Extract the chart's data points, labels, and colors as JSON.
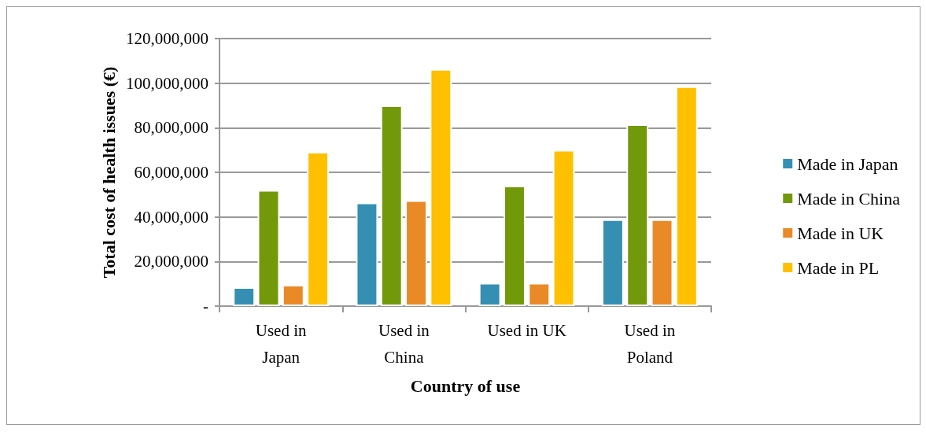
{
  "chart_data": {
    "type": "bar",
    "xlabel": "Country of use",
    "ylabel": "Total cost of health issues (€)",
    "categories": [
      "Used in\nJapan",
      "Used in\nChina",
      "Used in UK",
      "Used in\nPoland"
    ],
    "series": [
      {
        "name": "Made in Japan",
        "color": "#358fb3",
        "values": [
          8500000,
          46400000,
          10400000,
          38900000
        ]
      },
      {
        "name": "Made in China",
        "color": "#72990a",
        "values": [
          52100000,
          90000000,
          54000000,
          81500000
        ]
      },
      {
        "name": "Made in UK",
        "color": "#e98a27",
        "values": [
          9500000,
          47500000,
          10400000,
          38900000
        ]
      },
      {
        "name": "Made in PL",
        "color": "#fec000",
        "values": [
          69200000,
          106300000,
          70100000,
          98600000
        ]
      }
    ],
    "ylim": [
      0,
      120000000
    ],
    "yticks": [
      {
        "value": 0,
        "label": "-"
      },
      {
        "value": 20000000,
        "label": "20,000,000"
      },
      {
        "value": 40000000,
        "label": "40,000,000"
      },
      {
        "value": 60000000,
        "label": "60,000,000"
      },
      {
        "value": 80000000,
        "label": "80,000,000"
      },
      {
        "value": 100000000,
        "label": "100,000,000"
      },
      {
        "value": 120000000,
        "label": "120,000,000"
      }
    ],
    "grid": "y",
    "legend": "right"
  }
}
